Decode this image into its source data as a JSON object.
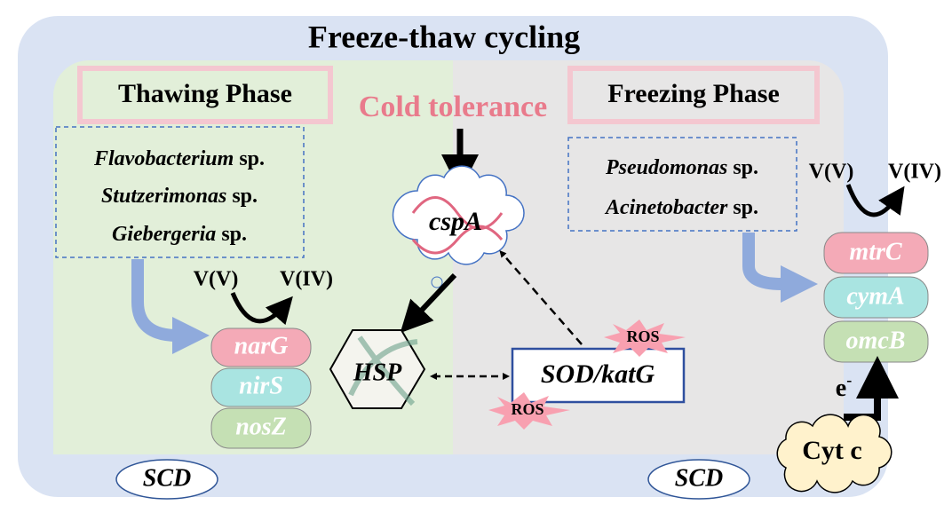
{
  "title": "Freeze-thaw cycling",
  "thawing": {
    "title": "Thawing Phase",
    "species": [
      {
        "genus": "Flavobacterium",
        "suffix": "sp."
      },
      {
        "genus": "Stutzerimonas",
        "suffix": "sp."
      },
      {
        "genus": "Giebergeria",
        "suffix": "sp."
      }
    ],
    "v_from": "V(V)",
    "v_to": "V(IV)",
    "genes": [
      "narG",
      "nirS",
      "nosZ"
    ],
    "scd": "SCD"
  },
  "cold_tolerance": "Cold tolerance",
  "center": {
    "cspa": "cspA",
    "hsp": "HSP",
    "sod": "SOD/katG",
    "ros": [
      "ROS",
      "ROS"
    ]
  },
  "freezing": {
    "title": "Freezing Phase",
    "species": [
      {
        "genus": "Pseudomonas",
        "suffix": "sp."
      },
      {
        "genus": "Acinetobacter",
        "suffix": "sp."
      }
    ],
    "v_from": "V(V)",
    "v_to": "V(IV)",
    "genes": [
      "mtrC",
      "cymA",
      "omcB"
    ],
    "electron": {
      "base": "e",
      "sup": "-"
    },
    "cytc": "Cyt c",
    "scd": "SCD"
  }
}
